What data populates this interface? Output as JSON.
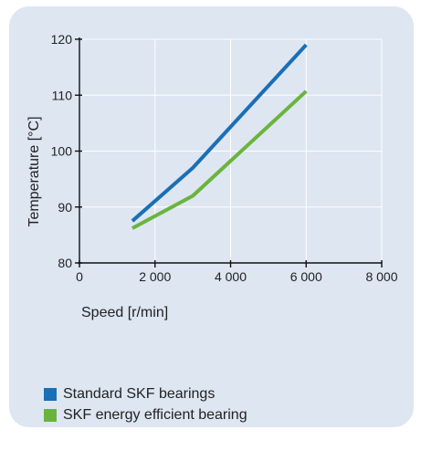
{
  "chart_data": {
    "type": "line",
    "title": "",
    "xlabel": "Speed [r/min]",
    "ylabel": "Temperature [°C]",
    "xlim": [
      0,
      8000
    ],
    "ylim": [
      80,
      120
    ],
    "x_ticks": [
      0,
      2000,
      4000,
      6000,
      8000
    ],
    "x_tick_labels": [
      "0",
      "2 000",
      "4 000",
      "6 000",
      "8 000"
    ],
    "y_ticks": [
      80,
      90,
      100,
      110,
      120
    ],
    "y_tick_labels": [
      "80",
      "90",
      "100",
      "110",
      "120"
    ],
    "grid": true,
    "legend_position": "bottom-left",
    "series": [
      {
        "name": "Standard SKF bearings",
        "color": "#1a6fb5",
        "x": [
          1400,
          3000,
          6000
        ],
        "y": [
          87.5,
          97,
          119
        ]
      },
      {
        "name": "SKF energy efficient bearing",
        "color": "#6ab43e",
        "x": [
          1400,
          3000,
          6000
        ],
        "y": [
          86.2,
          92,
          110.7
        ]
      }
    ]
  }
}
